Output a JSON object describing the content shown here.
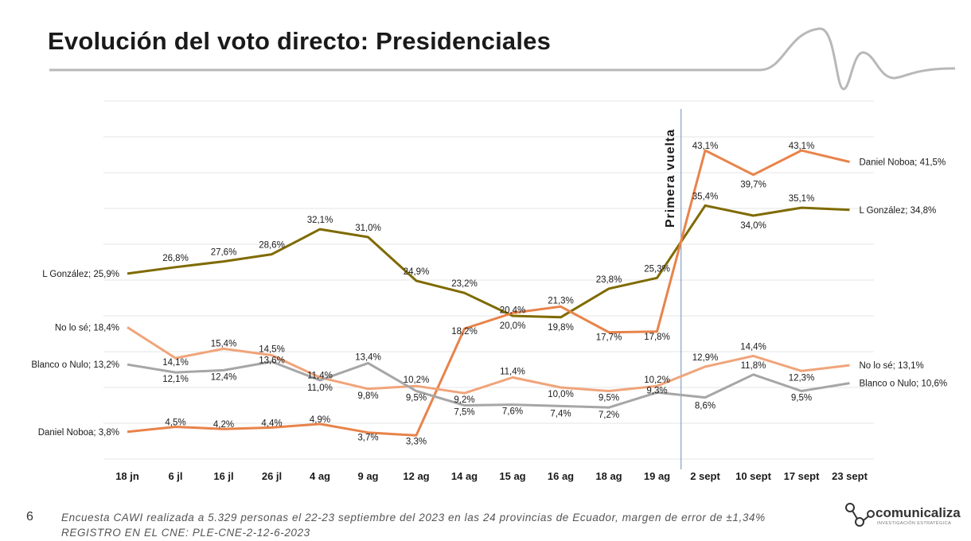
{
  "slide": {
    "title": "Evolución del voto directo: Presidenciales",
    "page_number": "6",
    "footnote_line1": "Encuesta CAWI realizada a 5.329 personas el 22-23 septiembre del 2023 en las 24 provincias de Ecuador, margen de error de ±1,34%",
    "footnote_line2": "REGISTRO EN EL CNE: PLE-CNE-2-12-6-2023",
    "logo_text": "comunicaliza",
    "logo_subtext": "INVESTIGACIÓN ESTRATÉGICA"
  },
  "colors": {
    "gonzalez": "#7f6a00",
    "noboa": "#e8834a",
    "nolose": "#f0a47a",
    "blanco": "#a6a6a6",
    "divider": "#6c8ebf",
    "grid": "#e4e4e4"
  },
  "chart_data": {
    "type": "line",
    "title": "Evolución del voto directo: Presidenciales",
    "xlabel": "",
    "ylabel": "",
    "ylim": [
      0,
      50
    ],
    "grid": true,
    "categories": [
      "18 jn",
      "6 jl",
      "16 jl",
      "26 jl",
      "4 ag",
      "9 ag",
      "12 ag",
      "14 ag",
      "15 ag",
      "16 ag",
      "18 ag",
      "19 ag",
      "2 sept",
      "10 sept",
      "17 sept",
      "23 sept"
    ],
    "annotation": {
      "text": "Primera vuelta",
      "between": [
        "19 ag",
        "2 sept"
      ]
    },
    "series": [
      {
        "name": "L González",
        "color_key": "gonzalez",
        "values": [
          25.9,
          26.8,
          27.6,
          28.6,
          32.1,
          31.0,
          24.9,
          23.2,
          20.0,
          19.8,
          23.8,
          25.3,
          35.4,
          34.0,
          35.1,
          34.8
        ],
        "labels": [
          "L González; 25,9%",
          "26,8%",
          "27,6%",
          "28,6%",
          "32,1%",
          "31,0%",
          "24,9%",
          "23,2%",
          "20,0%",
          "19,8%",
          "23,8%",
          "25,3%",
          "35,4%",
          "34,0%",
          "35,1%",
          "L González; 34,8%"
        ]
      },
      {
        "name": "Daniel Noboa",
        "color_key": "noboa",
        "values": [
          3.8,
          4.5,
          4.2,
          4.4,
          4.9,
          3.7,
          3.3,
          18.2,
          20.4,
          21.3,
          17.7,
          17.8,
          43.1,
          39.7,
          43.1,
          41.5
        ],
        "labels": [
          "Daniel Noboa; 3,8%",
          "4,5%",
          "4,2%",
          "4,4%",
          "4,9%",
          "3,7%",
          "3,3%",
          "18,2%",
          "20,4%",
          "21,3%",
          "17,7%",
          "17,8%",
          "43,1%",
          "39,7%",
          "43,1%",
          "Daniel Noboa; 41,5%"
        ]
      },
      {
        "name": "No lo sé",
        "color_key": "nolose",
        "values": [
          18.4,
          14.1,
          15.4,
          14.5,
          11.4,
          9.8,
          10.2,
          9.2,
          11.4,
          10.0,
          9.5,
          10.2,
          12.9,
          14.4,
          12.3,
          13.1
        ],
        "labels": [
          "No lo sé; 18,4%",
          "14,1%",
          "15,4%",
          "14,5%",
          "11,4%",
          "9,8%",
          "10,2%",
          "9,2%",
          "11,4%",
          "10,0%",
          "9,5%",
          "10,2%",
          "12,9%",
          "14,4%",
          "12,3%",
          "No lo sé; 13,1%"
        ]
      },
      {
        "name": "Blanco o Nulo",
        "color_key": "blanco",
        "values": [
          13.2,
          12.1,
          12.4,
          13.6,
          11.0,
          13.4,
          9.5,
          7.5,
          7.6,
          7.4,
          7.2,
          9.3,
          8.6,
          11.8,
          9.5,
          10.6
        ],
        "labels": [
          "Blanco o Nulo; 13,2%",
          "12,1%",
          "12,4%",
          "13,6%",
          "11,0%",
          "13,4%",
          "9,5%",
          "7,5%",
          "7,6%",
          "7,4%",
          "7,2%",
          "9,3%",
          "8,6%",
          "11,8%",
          "9,5%",
          "Blanco o Nulo; 10,6%"
        ]
      }
    ]
  }
}
